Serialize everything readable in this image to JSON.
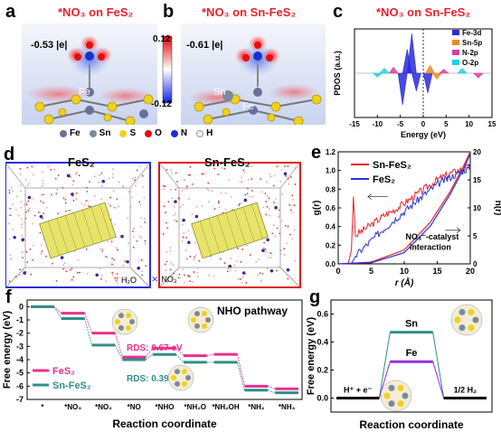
{
  "panel_a": {
    "label": "a",
    "title": "*NO₃ on FeS₂",
    "charge": "-0.53 |e|",
    "atom_label": "Fe"
  },
  "panel_b": {
    "label": "b",
    "title": "*NO₃ on Sn-FeS₂",
    "charge": "-0.61 |e|",
    "atom_labels": [
      "Sn",
      "Fe"
    ]
  },
  "colorbar": {
    "max": "0.12",
    "min": "-0.12"
  },
  "element_legend": [
    "Fe",
    "Sn",
    "S",
    "O",
    "N",
    "H"
  ],
  "element_colors": {
    "Fe": "#6a6f9a",
    "Sn": "#7a8a99",
    "S": "#f0d020",
    "O": "#e01010",
    "N": "#1830d0",
    "H": "#f0f0f0"
  },
  "panel_d": {
    "label": "d",
    "boxes": [
      {
        "title": "FeS₂",
        "border": "#2b2bd6"
      },
      {
        "title": "Sn-FeS₂",
        "border": "#e01515"
      }
    ],
    "legend": [
      "H₂O",
      "NO₃⁻"
    ]
  },
  "panel_f": {
    "label": "f"
  },
  "panel_g": {
    "label": "g"
  },
  "chart_data": [
    {
      "id": "c",
      "type": "line",
      "title": "*NO₃ on Sn-FeS₂",
      "xlabel": "Energy (eV)",
      "ylabel": "PDOS (a.u.)",
      "xlim": [
        -15,
        15
      ],
      "xticks": [
        -15,
        -10,
        -5,
        0,
        5,
        10,
        15
      ],
      "fermi_level": 0,
      "series": [
        {
          "name": "Fe-3d",
          "color": "#2a2bd8"
        },
        {
          "name": "Sn-5p",
          "color": "#f08a1a"
        },
        {
          "name": "N-2p",
          "color": "#e03aa0"
        },
        {
          "name": "O-2p",
          "color": "#18d2e6"
        }
      ],
      "peaks": [
        {
          "series": "Fe-3d",
          "x": -2.5,
          "y": 1.0
        },
        {
          "series": "Fe-3d",
          "x": -3.5,
          "y": 0.6
        },
        {
          "series": "Fe-3d",
          "x": -1.5,
          "y": -0.45
        },
        {
          "series": "Fe-3d",
          "x": -4.5,
          "y": -0.8
        },
        {
          "series": "Fe-3d",
          "x": 1.0,
          "y": -0.5
        },
        {
          "series": "Sn-5p",
          "x": 1.5,
          "y": 0.2
        },
        {
          "series": "Sn-5p",
          "x": 3.0,
          "y": -0.15
        },
        {
          "series": "N-2p",
          "x": -6.5,
          "y": 0.15
        },
        {
          "series": "N-2p",
          "x": 4.5,
          "y": 0.1
        },
        {
          "series": "N-2p",
          "x": 12.0,
          "y": -0.12
        },
        {
          "series": "O-2p",
          "x": -8.5,
          "y": 0.12
        },
        {
          "series": "O-2p",
          "x": 8.5,
          "y": 0.12
        },
        {
          "series": "O-2p",
          "x": -10.0,
          "y": -0.1
        }
      ]
    },
    {
      "id": "e",
      "type": "line",
      "xlabel": "r (Å)",
      "ylabel_left": "g(r)",
      "ylabel_right": "n(r)",
      "xlim": [
        0,
        20
      ],
      "ylim_left": [
        0.0,
        1.2
      ],
      "ylim_right": [
        0,
        20
      ],
      "xticks": [
        0,
        5,
        10,
        15,
        20
      ],
      "yticks_left": [
        "0.0",
        "0.2",
        "0.4",
        "0.6",
        "0.8",
        "1.0",
        "1.2"
      ],
      "yticks_right": [
        0,
        5,
        10,
        15,
        20
      ],
      "annotation": "NO₃⁻-catalyst interaction",
      "series": [
        {
          "name": "Sn-FeS₂",
          "color": "#e8232b",
          "g_r": [
            [
              1.5,
              0.0
            ],
            [
              2.0,
              0.15
            ],
            [
              2.3,
              0.72
            ],
            [
              2.6,
              0.3
            ],
            [
              3.5,
              0.35
            ],
            [
              5,
              0.42
            ],
            [
              7,
              0.52
            ],
            [
              9,
              0.6
            ],
            [
              11,
              0.7
            ],
            [
              13,
              0.8
            ],
            [
              15,
              0.9
            ],
            [
              17,
              0.97
            ],
            [
              19,
              1.02
            ],
            [
              20,
              1.04
            ]
          ],
          "n_r": [
            [
              0,
              0
            ],
            [
              5,
              0.3
            ],
            [
              10,
              2.5
            ],
            [
              14,
              7.5
            ],
            [
              17,
              13
            ],
            [
              19,
              17.5
            ],
            [
              20,
              20
            ]
          ]
        },
        {
          "name": "FeS₂",
          "color": "#2332d6",
          "g_r": [
            [
              2.0,
              0.0
            ],
            [
              2.6,
              0.08
            ],
            [
              3.5,
              0.15
            ],
            [
              5,
              0.25
            ],
            [
              7,
              0.38
            ],
            [
              9,
              0.5
            ],
            [
              11,
              0.62
            ],
            [
              13,
              0.74
            ],
            [
              15,
              0.85
            ],
            [
              17,
              0.93
            ],
            [
              19,
              1.0
            ],
            [
              20,
              1.03
            ]
          ],
          "n_r": [
            [
              0,
              0
            ],
            [
              5,
              0.2
            ],
            [
              10,
              2.0
            ],
            [
              14,
              6.8
            ],
            [
              17,
              12.5
            ],
            [
              19,
              17
            ],
            [
              20,
              19.6
            ]
          ]
        }
      ]
    },
    {
      "id": "f",
      "type": "line",
      "subtype": "step",
      "title": "NHO pathway",
      "xlabel": "Reaction coordinate",
      "ylabel": "Free energy (eV)",
      "ylim": [
        -7,
        0.5
      ],
      "yticks": [
        0,
        -1,
        -2,
        -3,
        -4,
        -5,
        -6,
        -7
      ],
      "categories": [
        "*",
        "*NO₃",
        "*NO₂",
        "*NO",
        "*NHO",
        "*NH₂O",
        "*NH₂OH",
        "*NH₂",
        "*NH₃"
      ],
      "series": [
        {
          "name": "FeS₂",
          "color": "#e8308c",
          "values": [
            0.0,
            -0.5,
            -2.0,
            -3.8,
            -3.13,
            -3.7,
            -3.6,
            -6.0,
            -6.2
          ]
        },
        {
          "name": "Sn-FeS₂",
          "color": "#2e8f86",
          "values": [
            0.0,
            -0.9,
            -2.9,
            -4.0,
            -3.61,
            -4.2,
            -4.2,
            -6.3,
            -6.5
          ]
        }
      ],
      "annotations": [
        {
          "text": "RDS: 0.67 eV",
          "color": "#e8308c"
        },
        {
          "text": "RDS: 0.39 eV",
          "color": "#2e8f86"
        }
      ]
    },
    {
      "id": "g",
      "type": "line",
      "subtype": "step",
      "xlabel": "Reaction coordinate",
      "ylabel": "Free energy (eV)",
      "ylim": [
        -0.1,
        0.7
      ],
      "yticks": [
        "0.0",
        "0.2",
        "0.4",
        "0.6"
      ],
      "categories": [
        "H⁺ + e⁻",
        "",
        "1/2 H₂"
      ],
      "series": [
        {
          "name": "Sn",
          "color": "#2e8f86",
          "values": [
            0.0,
            0.47,
            0.0
          ]
        },
        {
          "name": "Fe",
          "color": "#9b2be0",
          "values": [
            0.0,
            0.26,
            0.0
          ]
        }
      ]
    }
  ]
}
